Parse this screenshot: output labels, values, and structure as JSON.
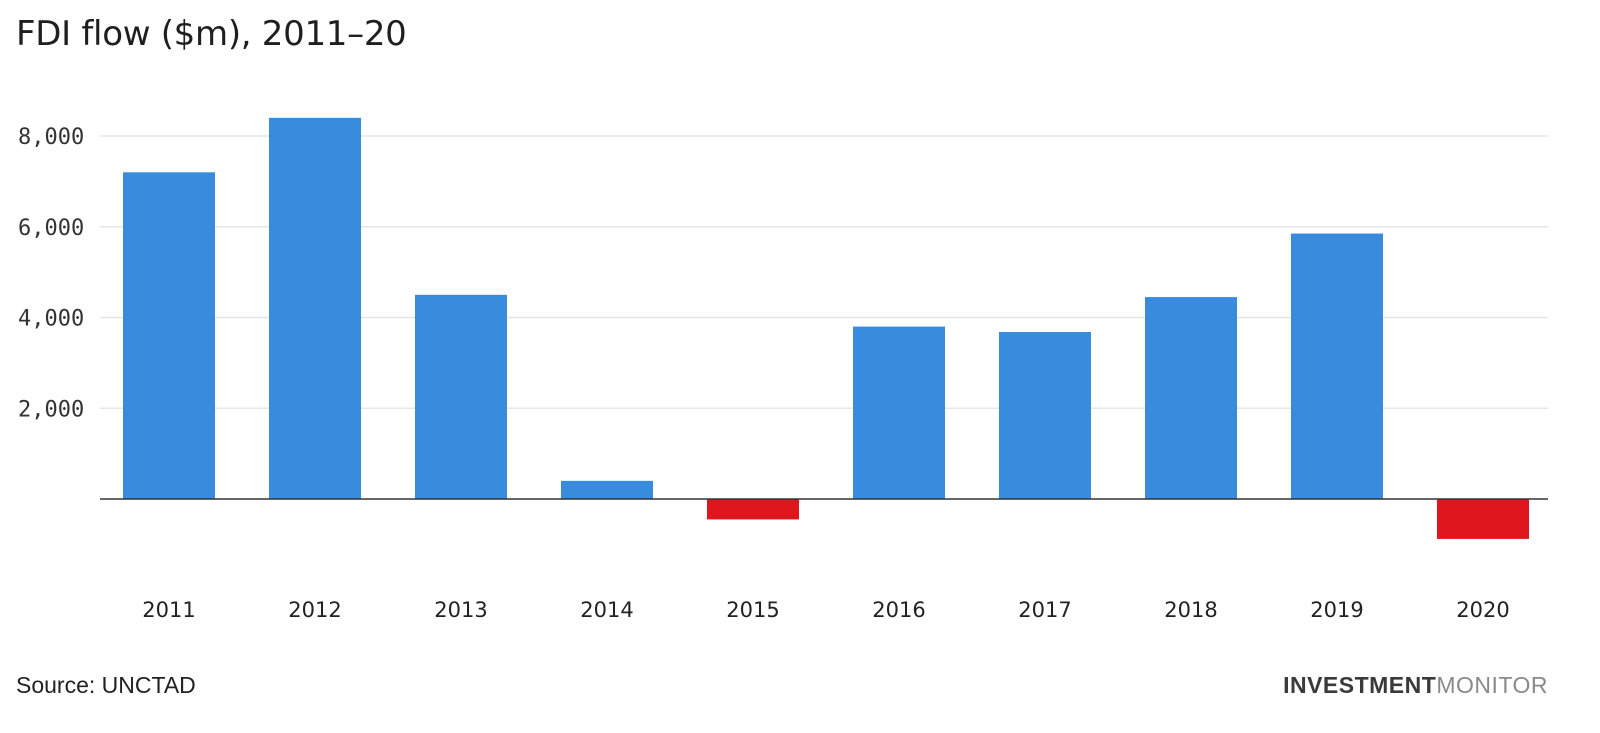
{
  "title": "FDI flow ($m), 2011–20",
  "source": "Source: UNCTAD",
  "brand": {
    "part1": "INVESTMENT",
    "part2": "MONITOR"
  },
  "colors": {
    "positive": "#388bdd",
    "negative": "#e0161f",
    "grid": "#e6e6e6",
    "axis": "#333333"
  },
  "chart_data": {
    "type": "bar",
    "title": "FDI flow ($m), 2011–20",
    "xlabel": "",
    "ylabel": "",
    "categories": [
      "2011",
      "2012",
      "2013",
      "2014",
      "2015",
      "2016",
      "2017",
      "2018",
      "2019",
      "2020"
    ],
    "values": [
      7200,
      8400,
      4500,
      400,
      -450,
      3800,
      3680,
      4450,
      5850,
      -880
    ],
    "ylim": [
      -1200,
      9000
    ],
    "yticks": [
      2000,
      4000,
      6000,
      8000
    ],
    "ytick_labels": [
      "2,000",
      "4,000",
      "6,000",
      "8,000"
    ],
    "grid": true,
    "legend": "none"
  }
}
